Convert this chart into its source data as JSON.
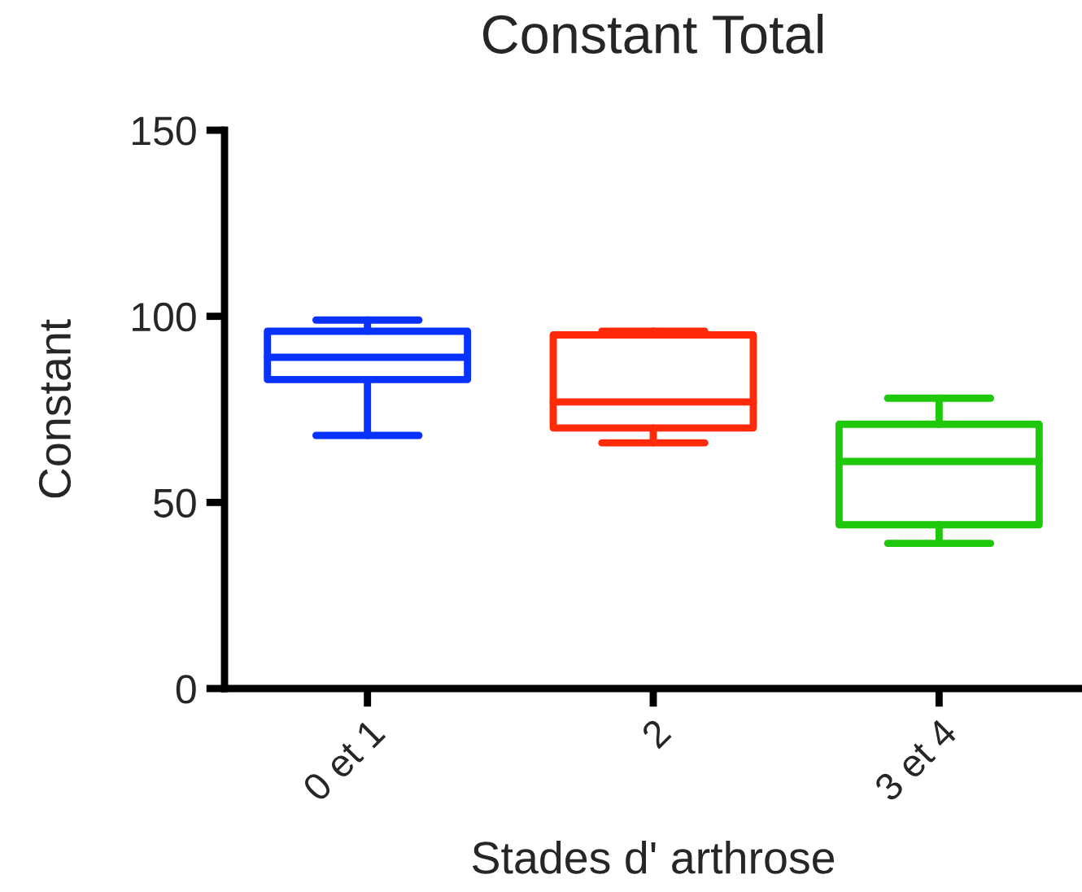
{
  "chart_data": {
    "type": "box",
    "title": "Constant Total",
    "xlabel": "Stades d' arthrose",
    "ylabel": "Constant",
    "categories": [
      "0 et 1",
      "2",
      "3 et 4"
    ],
    "boxes": [
      {
        "low": 68,
        "q1": 83,
        "median": 89,
        "q3": 96,
        "high": 99
      },
      {
        "low": 66,
        "q1": 70,
        "median": 77,
        "q3": 95,
        "high": 96
      },
      {
        "low": 39,
        "q1": 44,
        "median": 61,
        "q3": 71,
        "high": 78
      }
    ],
    "colors": [
      "#0a32ff",
      "#ff2a0a",
      "#1ec80a"
    ],
    "ylim": [
      0,
      150
    ],
    "yticks": [
      0,
      50,
      100,
      150
    ],
    "grid": false
  }
}
